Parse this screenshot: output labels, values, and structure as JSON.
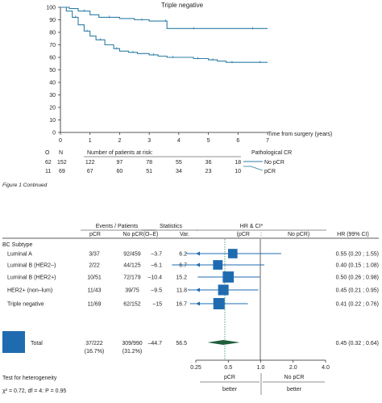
{
  "km": {
    "title": "Triple negative",
    "xlabel": "Time from surgery (years)",
    "x_ticks": [
      "0",
      "1",
      "2",
      "3",
      "4",
      "5",
      "6",
      "7"
    ],
    "y_ticks": [
      "0",
      "10",
      "20",
      "30",
      "40",
      "50",
      "60",
      "70",
      "80",
      "90",
      "100"
    ],
    "legend_title": "Pathological CR",
    "legend_items": [
      "No pCR",
      "pCR"
    ],
    "risk_header_O": "O",
    "risk_header_N": "N",
    "risk_header_label": "Number of patients at risk:",
    "risk_rows": [
      {
        "O": "62",
        "N": "152",
        "values": [
          "122",
          "97",
          "78",
          "55",
          "36",
          "18"
        ]
      },
      {
        "O": "11",
        "N": "69",
        "values": [
          "67",
          "60",
          "51",
          "34",
          "23",
          "10"
        ]
      }
    ],
    "caption": "Figure 1  Continued"
  },
  "forest": {
    "header_events": "Events / Patients",
    "header_stats": "Statistics",
    "header_hr": "HR & CI*",
    "sub_pcr": "pCR",
    "sub_nopcr": "No pCR",
    "sub_oe": "(O–E)",
    "sub_var": "Var.",
    "sub_hr_pcr": "(pCR",
    "sub_colon": ":",
    "sub_hr_nopcr": "No pCR)",
    "sub_hr99": "HR (99% CI)",
    "group_label": "BC Subtype",
    "rows": [
      {
        "name": "Luminal A",
        "pcr": "3/37",
        "nopcr": "92/459",
        "oe": "–3.7",
        "var": "6.2",
        "hr_text": "0.55 (0.20 ; 1.55)"
      },
      {
        "name": "Luminal B (HER2–)",
        "pcr": "2/22",
        "nopcr": "44/125",
        "oe": "–6.1",
        "var": "6.7",
        "hr_text": "0.40 (0.15 ; 1.08)"
      },
      {
        "name": "Luminal B (HER2+)",
        "pcr": "10/51",
        "nopcr": "72/179",
        "oe": "–10.4",
        "var": "15.2",
        "hr_text": "0.50 (0.26 ; 0.98)"
      },
      {
        "name": "HER2+ (non–lum)",
        "pcr": "11/43",
        "nopcr": "39/75",
        "oe": "–9.5",
        "var": "11.8",
        "hr_text": "0.45 (0.21 ; 0.95)"
      },
      {
        "name": "Triple negative",
        "pcr": "11/69",
        "nopcr": "62/152",
        "oe": "–15",
        "var": "16.7",
        "hr_text": "0.41 (0.22 ; 0.76)"
      }
    ],
    "total": {
      "name": "Total",
      "pcr": "37/222",
      "nopcr": "309/990",
      "pcr_pct": "(16.7%)",
      "nopcr_pct": "(31.2%)",
      "oe": "–44.7",
      "var": "56.5",
      "hr_text": "0.45 (0.32 ; 0.64)"
    },
    "axis_ticks": [
      "0.25",
      "0.5",
      "1.0",
      "2.0",
      "4.0"
    ],
    "favor_pcr_1": "pCR",
    "favor_pcr_2": "better",
    "favor_nopcr_1": "No pCR",
    "favor_nopcr_2": "better",
    "het_label": "Test for heterogeneity",
    "het_stats": "χ² = 0.72, df = 4: P = 0.95"
  },
  "chart_data": [
    {
      "type": "line",
      "title": "Triple negative",
      "xlabel": "Time from surgery (years)",
      "ylabel": "",
      "xlim": [
        0,
        7
      ],
      "ylim": [
        0,
        100
      ],
      "legend_title": "Pathological CR",
      "series": [
        {
          "name": "No pCR",
          "color": "#2e7fa5",
          "x": [
            0,
            0.2,
            0.4,
            0.6,
            0.8,
            1.0,
            1.2,
            1.5,
            1.8,
            2.0,
            2.3,
            2.6,
            3.0,
            3.3,
            3.6,
            4.0,
            4.5,
            4.8,
            5.0,
            5.3,
            5.6,
            6.0,
            6.5,
            7.0
          ],
          "y": [
            100,
            97,
            92,
            86,
            81,
            77,
            74,
            70,
            67,
            65,
            64,
            63,
            62,
            61,
            60,
            60,
            59,
            59,
            58,
            57,
            56,
            56,
            56,
            56
          ]
        },
        {
          "name": "pCR",
          "color": "#2e7fa5",
          "x": [
            0,
            0.3,
            0.6,
            1.0,
            1.3,
            2.0,
            2.5,
            3.0,
            3.5,
            3.6,
            4.0,
            5.0,
            6.0,
            7.0
          ],
          "y": [
            100,
            99,
            97,
            94,
            92,
            91,
            90,
            89,
            89,
            83,
            83,
            83,
            83,
            83
          ]
        }
      ]
    },
    {
      "type": "scatter",
      "title": "",
      "xlabel": "",
      "x_scale": "log",
      "xlim": [
        0.25,
        4.0
      ],
      "reference_line": 1.0,
      "overall_line": 0.45,
      "categories": [
        "Luminal A",
        "Luminal B (HER2–)",
        "Luminal B (HER2+)",
        "HER2+ (non–lum)",
        "Triple negative",
        "Total"
      ],
      "hr": [
        0.55,
        0.4,
        0.5,
        0.45,
        0.41,
        0.45
      ],
      "ci_low": [
        0.2,
        0.15,
        0.26,
        0.21,
        0.22,
        0.32
      ],
      "ci_high": [
        1.55,
        1.08,
        0.98,
        0.95,
        0.76,
        0.64
      ],
      "weight_var": [
        6.2,
        6.7,
        15.2,
        11.8,
        16.7,
        56.5
      ],
      "color": "#1f6bb0",
      "total_color": "#1e5e3c"
    }
  ]
}
